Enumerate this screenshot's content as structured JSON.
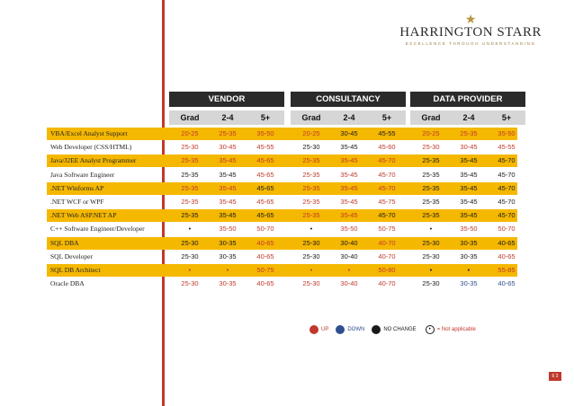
{
  "brand": {
    "name": "HARRINGTON STARR",
    "tagline": "EXCELLENCE THROUGH UNDERSTANDING"
  },
  "groups": [
    "VENDOR",
    "CONSULTANCY",
    "DATA PROVIDER"
  ],
  "subheaders": [
    "Grad",
    "2-4",
    "5+",
    "Grad",
    "2-4",
    "5+",
    "Grad",
    "2-4",
    "5+"
  ],
  "rows": [
    {
      "label": "VBA/Excel Analyst Support",
      "gold": true,
      "cells": [
        "20-25",
        "25-35",
        "35-50",
        "20-25",
        "30-45",
        "45-55",
        "20-25",
        "25-35",
        "35-50"
      ],
      "colors": [
        "r",
        "r",
        "r",
        "r",
        "k",
        "k",
        "r",
        "r",
        "r"
      ]
    },
    {
      "label": "Web Developer (CSS/HTML)",
      "gold": false,
      "cells": [
        "25-30",
        "30-45",
        "45-55",
        "25-30",
        "35-45",
        "45-60",
        "25-30",
        "30-45",
        "45-55"
      ],
      "colors": [
        "r",
        "r",
        "r",
        "k",
        "k",
        "r",
        "r",
        "r",
        "r"
      ]
    },
    {
      "label": "Java/J2EE Analyst Programmer",
      "gold": true,
      "cells": [
        "25-35",
        "35-45",
        "45-65",
        "25-35",
        "35-45",
        "45-70",
        "25-35",
        "35-45",
        "45-70"
      ],
      "colors": [
        "r",
        "r",
        "r",
        "r",
        "r",
        "r",
        "k",
        "k",
        "k"
      ]
    },
    {
      "label": "Java Software Engineer",
      "gold": false,
      "cells": [
        "25-35",
        "35-45",
        "45-65",
        "25-35",
        "35-45",
        "45-70",
        "25-35",
        "35-45",
        "45-70"
      ],
      "colors": [
        "k",
        "k",
        "r",
        "r",
        "r",
        "r",
        "k",
        "k",
        "k"
      ]
    },
    {
      "label": ".NET Winforms AP",
      "gold": true,
      "cells": [
        "25-35",
        "35-45",
        "45-65",
        "25-35",
        "35-45",
        "45-70",
        "25-35",
        "35-45",
        "45-70"
      ],
      "colors": [
        "r",
        "r",
        "k",
        "r",
        "r",
        "r",
        "k",
        "k",
        "k"
      ]
    },
    {
      "label": ".NET WCF or WPF",
      "gold": false,
      "cells": [
        "25-35",
        "35-45",
        "45-65",
        "25-35",
        "35-45",
        "45-75",
        "25-35",
        "35-45",
        "45-70"
      ],
      "colors": [
        "r",
        "r",
        "r",
        "r",
        "r",
        "r",
        "k",
        "k",
        "k"
      ]
    },
    {
      "label": ".NET Web ASP.NET AP",
      "gold": true,
      "cells": [
        "25-35",
        "35-45",
        "45-65",
        "25-35",
        "35-45",
        "45-70",
        "25-35",
        "35-45",
        "45-70"
      ],
      "colors": [
        "k",
        "k",
        "k",
        "r",
        "r",
        "k",
        "k",
        "k",
        "k"
      ]
    },
    {
      "label": "C++ Software Engineer/Developer",
      "gold": false,
      "cells": [
        "•",
        "35-50",
        "50-70",
        "•",
        "35-50",
        "50-75",
        "•",
        "35-50",
        "50-70"
      ],
      "colors": [
        "k",
        "r",
        "r",
        "k",
        "r",
        "r",
        "k",
        "r",
        "r"
      ]
    },
    {
      "label": "SQL DBA",
      "gold": true,
      "cells": [
        "25-30",
        "30-35",
        "40-65",
        "25-30",
        "30-40",
        "40-70",
        "25-30",
        "30-35",
        "40-65"
      ],
      "colors": [
        "k",
        "k",
        "r",
        "k",
        "k",
        "r",
        "k",
        "k",
        "k"
      ]
    },
    {
      "label": "SQL Developer",
      "gold": false,
      "cells": [
        "25-30",
        "30-35",
        "40-65",
        "25-30",
        "30-40",
        "40-70",
        "25-30",
        "30-35",
        "40-65"
      ],
      "colors": [
        "k",
        "k",
        "r",
        "k",
        "k",
        "r",
        "k",
        "k",
        "r"
      ]
    },
    {
      "label": "SQL DB Architect",
      "gold": true,
      "cells": [
        "•",
        "•",
        "50-75",
        "•",
        "•",
        "50-80",
        "•",
        "•",
        "55-85"
      ],
      "colors": [
        "r",
        "r",
        "r",
        "r",
        "r",
        "r",
        "k",
        "k",
        "r"
      ]
    },
    {
      "label": "Oracle DBA",
      "gold": false,
      "cells": [
        "25-30",
        "30-35",
        "40-65",
        "25-30",
        "30-40",
        "40-70",
        "25-30",
        "30-35",
        "40-65"
      ],
      "colors": [
        "r",
        "r",
        "r",
        "r",
        "r",
        "r",
        "k",
        "b",
        "b"
      ]
    }
  ],
  "legend": {
    "up": "UP",
    "down": "DOWN",
    "nochange": "NO CHANGE",
    "na": "= Not applicable",
    "na_symbol": "•"
  },
  "page_number": "6 3",
  "colors": {
    "accent": "#c0392b",
    "gold": "#f5b800",
    "header": "#2b2b2b"
  }
}
